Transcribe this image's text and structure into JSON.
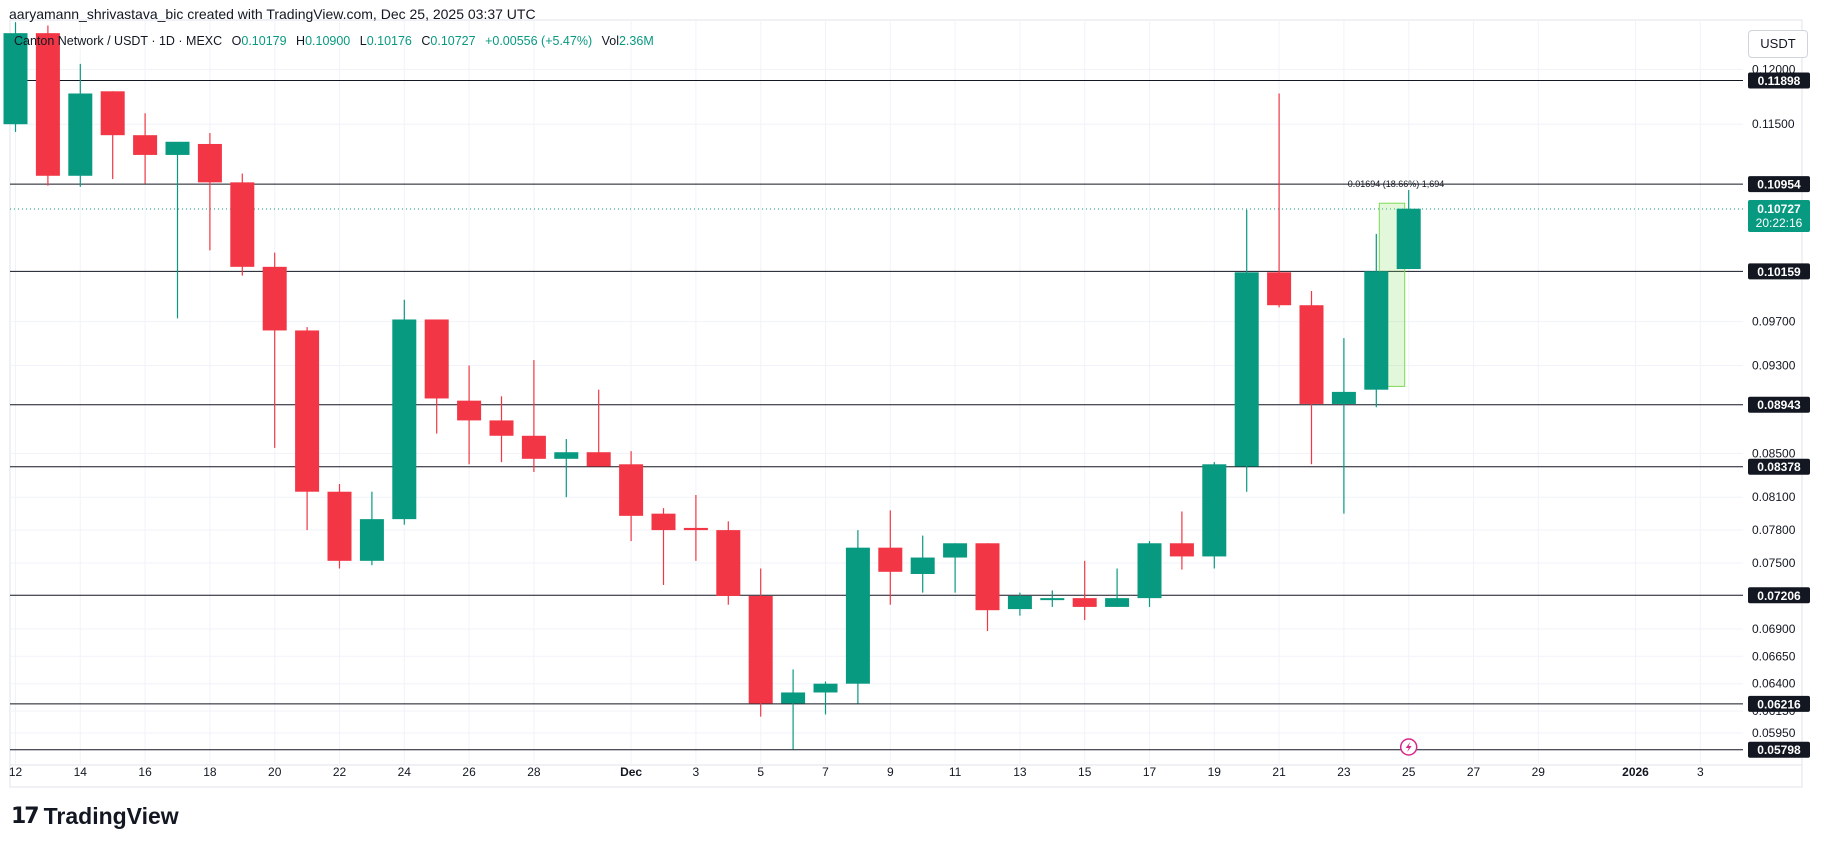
{
  "header": {
    "credit": "aaryamann_shrivastava_bic created with TradingView.com, Dec 25, 2025 03:37 UTC"
  },
  "legend": {
    "symbol": "Canton Network / USDT · 1D · MEXC",
    "o_label": "O",
    "o_value": "0.10179",
    "h_label": "H",
    "h_value": "0.10900",
    "l_label": "L",
    "l_value": "0.10176",
    "c_label": "C",
    "c_value": "0.10727",
    "change": "+0.00556 (+5.47%)",
    "vol_label": "Vol",
    "vol_value": "2.36M"
  },
  "currency_button": "USDT",
  "brand": {
    "name": "TradingView"
  },
  "colors": {
    "up": "#089981",
    "down": "#f23645",
    "grid": "#f0f3fa",
    "level": "#131722",
    "measure": "#7ed957"
  },
  "chart_data": {
    "type": "candlestick",
    "ylim": [
      0.0575,
      0.1245
    ],
    "x_ticks": [
      {
        "label": "12",
        "day": 0
      },
      {
        "label": "14",
        "day": 2
      },
      {
        "label": "16",
        "day": 4
      },
      {
        "label": "18",
        "day": 6
      },
      {
        "label": "20",
        "day": 8
      },
      {
        "label": "22",
        "day": 10
      },
      {
        "label": "24",
        "day": 12
      },
      {
        "label": "26",
        "day": 14
      },
      {
        "label": "28",
        "day": 16
      },
      {
        "label": "Dec",
        "day": 19,
        "bold": true
      },
      {
        "label": "3",
        "day": 21
      },
      {
        "label": "5",
        "day": 23
      },
      {
        "label": "7",
        "day": 25
      },
      {
        "label": "9",
        "day": 27
      },
      {
        "label": "11",
        "day": 29
      },
      {
        "label": "13",
        "day": 31
      },
      {
        "label": "15",
        "day": 33
      },
      {
        "label": "17",
        "day": 35
      },
      {
        "label": "19",
        "day": 37
      },
      {
        "label": "21",
        "day": 39
      },
      {
        "label": "23",
        "day": 41
      },
      {
        "label": "25",
        "day": 43
      },
      {
        "label": "27",
        "day": 45
      },
      {
        "label": "29",
        "day": 47
      },
      {
        "label": "2026",
        "day": 50,
        "bold": true
      },
      {
        "label": "3",
        "day": 52
      }
    ],
    "y_ticks": [
      "0.12000",
      "0.11500",
      "0.09700",
      "0.09300",
      "0.08500",
      "0.08100",
      "0.07800",
      "0.07500",
      "0.06900",
      "0.06650",
      "0.06400",
      "0.06150",
      "0.05950"
    ],
    "levels": [
      "0.11898",
      "0.10954",
      "0.10159",
      "0.08943",
      "0.08378",
      "0.07206",
      "0.06216",
      "0.05798"
    ],
    "current_price": "0.10727",
    "countdown": "20:22:16",
    "measure_label": "0.01694 (18.66%) 1,694",
    "candles": [
      {
        "day": 0,
        "o": 0.115,
        "h": 0.1243,
        "l": 0.1143,
        "c": 0.1233
      },
      {
        "day": 1,
        "o": 0.1233,
        "h": 0.124,
        "l": 0.1094,
        "c": 0.1103
      },
      {
        "day": 2,
        "o": 0.1103,
        "h": 0.1205,
        "l": 0.1093,
        "c": 0.1178
      },
      {
        "day": 3,
        "o": 0.118,
        "h": 0.118,
        "l": 0.11,
        "c": 0.114
      },
      {
        "day": 4,
        "o": 0.114,
        "h": 0.116,
        "l": 0.1096,
        "c": 0.1122
      },
      {
        "day": 5,
        "o": 0.1122,
        "h": 0.113,
        "l": 0.0973,
        "c": 0.1134
      },
      {
        "day": 6,
        "o": 0.1132,
        "h": 0.1142,
        "l": 0.1035,
        "c": 0.1097
      },
      {
        "day": 7,
        "o": 0.1097,
        "h": 0.1105,
        "l": 0.1012,
        "c": 0.102
      },
      {
        "day": 8,
        "o": 0.102,
        "h": 0.1033,
        "l": 0.0855,
        "c": 0.0962
      },
      {
        "day": 9,
        "o": 0.0962,
        "h": 0.0965,
        "l": 0.078,
        "c": 0.0815
      },
      {
        "day": 10,
        "o": 0.0815,
        "h": 0.0822,
        "l": 0.0745,
        "c": 0.0752
      },
      {
        "day": 11,
        "o": 0.0752,
        "h": 0.0815,
        "l": 0.0748,
        "c": 0.079
      },
      {
        "day": 12,
        "o": 0.079,
        "h": 0.099,
        "l": 0.0785,
        "c": 0.0972
      },
      {
        "day": 13,
        "o": 0.0972,
        "h": 0.0972,
        "l": 0.0868,
        "c": 0.09
      },
      {
        "day": 14,
        "o": 0.0898,
        "h": 0.093,
        "l": 0.084,
        "c": 0.088
      },
      {
        "day": 15,
        "o": 0.088,
        "h": 0.0902,
        "l": 0.0842,
        "c": 0.0866
      },
      {
        "day": 16,
        "o": 0.0866,
        "h": 0.0935,
        "l": 0.0833,
        "c": 0.0845
      },
      {
        "day": 17,
        "o": 0.0845,
        "h": 0.0863,
        "l": 0.081,
        "c": 0.0851
      },
      {
        "day": 18,
        "o": 0.0851,
        "h": 0.0908,
        "l": 0.0838,
        "c": 0.0838
      },
      {
        "day": 19,
        "o": 0.084,
        "h": 0.0852,
        "l": 0.077,
        "c": 0.0793
      },
      {
        "day": 20,
        "o": 0.0795,
        "h": 0.08,
        "l": 0.073,
        "c": 0.078
      },
      {
        "day": 21,
        "o": 0.0782,
        "h": 0.0812,
        "l": 0.0752,
        "c": 0.078
      },
      {
        "day": 22,
        "o": 0.078,
        "h": 0.0788,
        "l": 0.0712,
        "c": 0.072
      },
      {
        "day": 23,
        "o": 0.072,
        "h": 0.0745,
        "l": 0.061,
        "c": 0.0622
      },
      {
        "day": 24,
        "o": 0.0622,
        "h": 0.0653,
        "l": 0.058,
        "c": 0.0632
      },
      {
        "day": 25,
        "o": 0.0632,
        "h": 0.0642,
        "l": 0.0612,
        "c": 0.064
      },
      {
        "day": 26,
        "o": 0.064,
        "h": 0.078,
        "l": 0.0622,
        "c": 0.0764
      },
      {
        "day": 27,
        "o": 0.0764,
        "h": 0.0798,
        "l": 0.0712,
        "c": 0.0742
      },
      {
        "day": 28,
        "o": 0.074,
        "h": 0.0775,
        "l": 0.0723,
        "c": 0.0755
      },
      {
        "day": 29,
        "o": 0.0755,
        "h": 0.0768,
        "l": 0.0723,
        "c": 0.0768
      },
      {
        "day": 30,
        "o": 0.0768,
        "h": 0.0768,
        "l": 0.0688,
        "c": 0.0707
      },
      {
        "day": 31,
        "o": 0.0708,
        "h": 0.0723,
        "l": 0.0702,
        "c": 0.072
      },
      {
        "day": 32,
        "o": 0.0718,
        "h": 0.0725,
        "l": 0.071,
        "c": 0.0718
      },
      {
        "day": 33,
        "o": 0.0718,
        "h": 0.0752,
        "l": 0.0698,
        "c": 0.071
      },
      {
        "day": 34,
        "o": 0.071,
        "h": 0.0745,
        "l": 0.071,
        "c": 0.0718
      },
      {
        "day": 35,
        "o": 0.0718,
        "h": 0.077,
        "l": 0.071,
        "c": 0.0768
      },
      {
        "day": 36,
        "o": 0.0768,
        "h": 0.0797,
        "l": 0.0744,
        "c": 0.0756
      },
      {
        "day": 37,
        "o": 0.0756,
        "h": 0.0842,
        "l": 0.0745,
        "c": 0.084
      },
      {
        "day": 38,
        "o": 0.0838,
        "h": 0.1072,
        "l": 0.0815,
        "c": 0.1015
      },
      {
        "day": 39,
        "o": 0.1015,
        "h": 0.1178,
        "l": 0.0983,
        "c": 0.0985
      },
      {
        "day": 40,
        "o": 0.0985,
        "h": 0.0998,
        "l": 0.084,
        "c": 0.0895
      },
      {
        "day": 41,
        "o": 0.0895,
        "h": 0.0955,
        "l": 0.0795,
        "c": 0.0906
      },
      {
        "day": 42,
        "o": 0.0908,
        "h": 0.105,
        "l": 0.0892,
        "c": 0.1016
      },
      {
        "day": 43,
        "o": 0.1018,
        "h": 0.109,
        "l": 0.1018,
        "c": 0.1073
      }
    ]
  }
}
